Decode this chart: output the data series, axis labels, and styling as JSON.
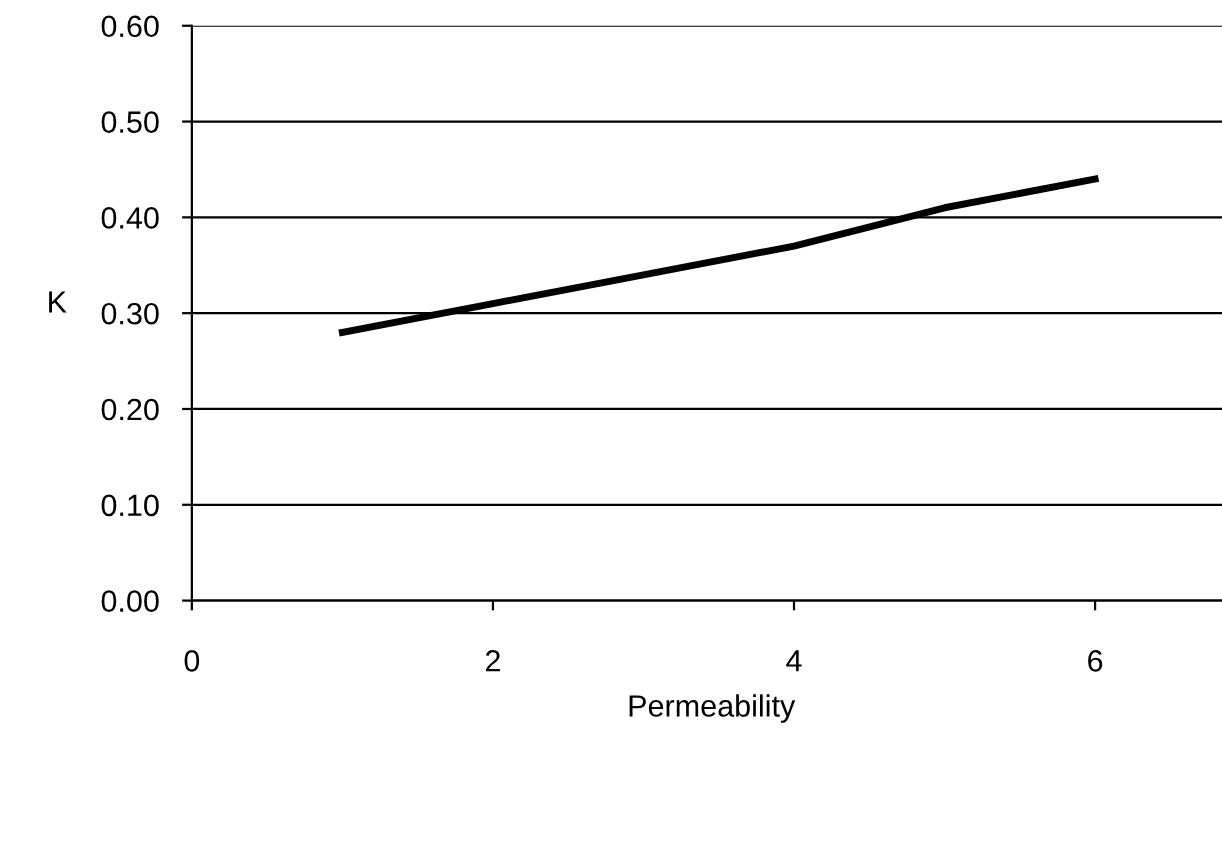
{
  "chart_data": {
    "type": "line",
    "xlabel": "Permeability",
    "ylabel": "K",
    "x": [
      1,
      2,
      3,
      4,
      5,
      6
    ],
    "series": [
      {
        "color": "#000000",
        "values": [
          0.28,
          0.31,
          0.34,
          0.37,
          0.41,
          0.44
        ]
      }
    ],
    "xlim": [
      0,
      6.9
    ],
    "xticks": [
      0,
      2,
      4,
      6
    ],
    "ylim": [
      0,
      0.6
    ],
    "yticks": [
      {
        "value": 0,
        "label": "0.00"
      },
      {
        "value": 0.1,
        "label": "0.10"
      },
      {
        "value": 0.2,
        "label": "0.20"
      },
      {
        "value": 0.3,
        "label": "0.30"
      },
      {
        "value": 0.4,
        "label": "0.40"
      },
      {
        "value": 0.5,
        "label": "0.50"
      },
      {
        "value": 0.6,
        "label": "0.60"
      }
    ],
    "grid": "y",
    "marker": "none",
    "line_style": "solid",
    "legend": false
  }
}
